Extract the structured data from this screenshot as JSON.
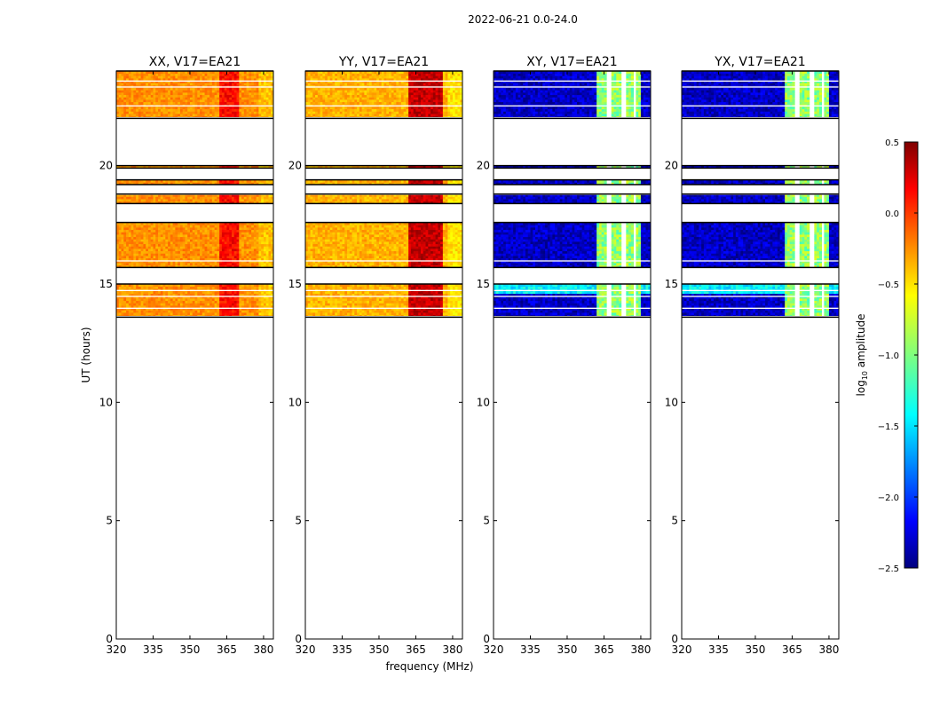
{
  "chart_data": {
    "type": "heatmap",
    "suptitle": "2022-06-21 0.0-24.0",
    "xlabel": "frequency (MHz)",
    "ylabel": "UT (hours)",
    "xlim": [
      320,
      384
    ],
    "ylim": [
      0,
      24
    ],
    "x_ticks": [
      320,
      335,
      350,
      365,
      380
    ],
    "y_ticks": [
      0,
      5,
      10,
      15,
      20
    ],
    "colormap": "jet",
    "colorbar": {
      "label": "log10 amplitude",
      "label_base": "log",
      "label_sub": "10",
      "label_rest": " amplitude",
      "range": [
        -2.5,
        0.5
      ],
      "ticks": [
        "0.5",
        "0.0",
        "−0.5",
        "−1.0",
        "−1.5",
        "−2.0",
        "−2.5"
      ],
      "tick_values": [
        0.5,
        0.0,
        -0.5,
        -1.0,
        -1.5,
        -2.0,
        -2.5
      ]
    },
    "data_blocks_ut": [
      [
        13.6,
        15.0
      ],
      [
        15.7,
        17.6
      ],
      [
        18.4,
        18.8
      ],
      [
        19.2,
        19.4
      ],
      [
        19.9,
        20.0
      ],
      [
        22.0,
        24.0
      ]
    ],
    "flagged_gaps_ut": [
      [
        13.6,
        13.65
      ],
      [
        13.95,
        14.0
      ],
      [
        14.45,
        14.5
      ],
      [
        14.7,
        14.75
      ],
      [
        15.6,
        15.7
      ],
      [
        15.95,
        16.0
      ],
      [
        17.6,
        18.4
      ],
      [
        18.78,
        18.8
      ],
      [
        19.0,
        19.2
      ],
      [
        19.4,
        19.9
      ],
      [
        20.0,
        22.0
      ],
      [
        22.0,
        22.05
      ],
      [
        22.5,
        22.55
      ],
      [
        23.3,
        23.35
      ],
      [
        23.55,
        23.6
      ]
    ],
    "panels": [
      {
        "title": "XX, V17=EA21",
        "pol": "XX",
        "baseline": "V17=EA21",
        "typical_log10_amp": -0.3,
        "peak_log10_amp": 0.2,
        "peak_freq_mhz": [
          362,
          370
        ],
        "flagged_freq_mhz": []
      },
      {
        "title": "YY, V17=EA21",
        "pol": "YY",
        "baseline": "V17=EA21",
        "typical_log10_amp": -0.4,
        "peak_log10_amp": 0.4,
        "peak_freq_mhz": [
          362,
          376
        ],
        "flagged_freq_mhz": []
      },
      {
        "title": "XY, V17=EA21",
        "pol": "XY",
        "baseline": "V17=EA21",
        "typical_log10_amp": -2.3,
        "peak_log10_amp": -0.6,
        "peak_freq_mhz": [
          362,
          380
        ],
        "flagged_freq_mhz": [
          [
            366.5,
            367.5
          ],
          [
            372.5,
            373.5
          ],
          [
            377,
            378
          ]
        ]
      },
      {
        "title": "YX, V17=EA21",
        "pol": "YX",
        "baseline": "V17=EA21",
        "typical_log10_amp": -2.3,
        "peak_log10_amp": -0.6,
        "peak_freq_mhz": [
          362,
          380
        ],
        "flagged_freq_mhz": [
          [
            366.5,
            367.5
          ],
          [
            372.5,
            373.5
          ],
          [
            377,
            378
          ]
        ]
      }
    ]
  }
}
